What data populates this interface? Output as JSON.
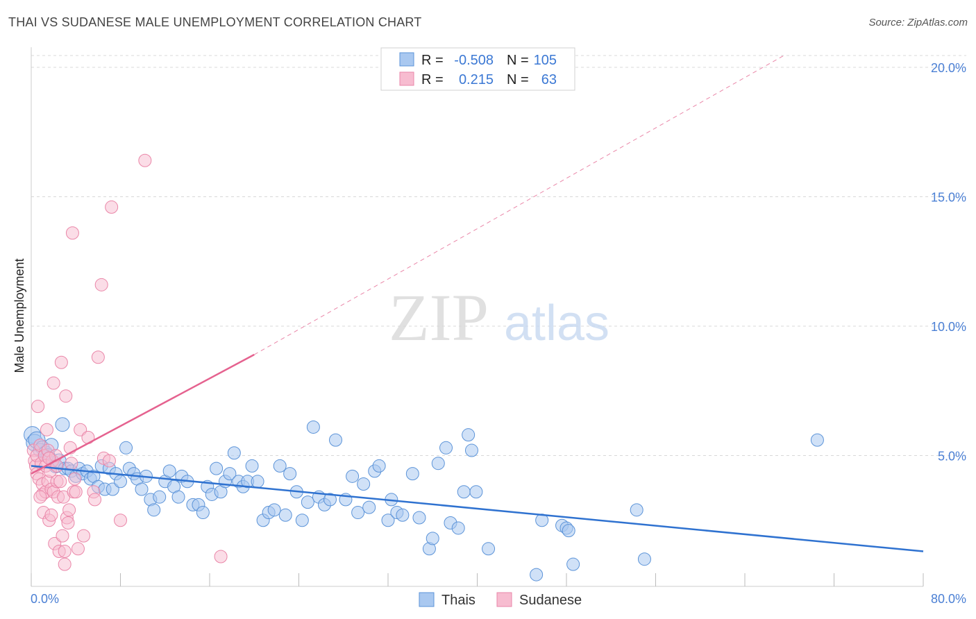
{
  "header": {
    "title": "THAI VS SUDANESE MALE UNEMPLOYMENT CORRELATION CHART",
    "source": "Source: ZipAtlas.com"
  },
  "watermark": {
    "zip": "ZIP",
    "atlas": "atlas"
  },
  "legend_box": {
    "rows": [
      {
        "r_label": "R =",
        "r_value": "-0.508",
        "n_label": "N =",
        "n_value": "105"
      },
      {
        "r_label": "R =",
        "r_value": "0.215",
        "n_label": "N =",
        "n_value": "63"
      }
    ]
  },
  "bottom_legend": [
    "Thais",
    "Sudanese"
  ],
  "colors": {
    "thais_fill": "#a9c8f0",
    "thais_stroke": "#5b93d8",
    "thais_line": "#2f72d0",
    "sudanese_fill": "#f7bcd0",
    "sudanese_stroke": "#ea86a8",
    "sudanese_line": "#e5628f",
    "tick_text": "#4a7fd4",
    "grid": "#d8d8d8"
  },
  "chart_data": {
    "type": "scatter",
    "title": "THAI VS SUDANESE MALE UNEMPLOYMENT CORRELATION CHART",
    "xlabel": "",
    "ylabel": "Male Unemployment",
    "xlim": [
      0,
      80
    ],
    "ylim": [
      0,
      20
    ],
    "x_tick_labels": [
      "0.0%",
      "80.0%"
    ],
    "y_ticks": [
      5,
      10,
      15,
      20
    ],
    "y_tick_labels": [
      "5.0%",
      "10.0%",
      "15.0%",
      "20.0%"
    ],
    "grid": true,
    "legend_position": "top-center",
    "series": [
      {
        "name": "Thais",
        "r": -0.508,
        "n": 105,
        "trend": {
          "x": [
            0,
            80
          ],
          "y": [
            4.6,
            1.3
          ]
        },
        "points": [
          [
            0.1,
            5.8
          ],
          [
            0.3,
            5.5
          ],
          [
            0.5,
            5.6
          ],
          [
            0.8,
            5.2
          ],
          [
            1.0,
            5.3
          ],
          [
            1.3,
            5.1
          ],
          [
            1.5,
            5.0
          ],
          [
            1.8,
            5.4
          ],
          [
            2.0,
            4.7
          ],
          [
            2.2,
            4.6
          ],
          [
            2.5,
            4.8
          ],
          [
            2.8,
            6.2
          ],
          [
            3.0,
            4.5
          ],
          [
            3.3,
            4.5
          ],
          [
            3.6,
            4.4
          ],
          [
            4.0,
            4.2
          ],
          [
            4.3,
            4.5
          ],
          [
            4.6,
            4.3
          ],
          [
            5.0,
            4.4
          ],
          [
            5.3,
            4.1
          ],
          [
            5.6,
            4.2
          ],
          [
            6.0,
            3.8
          ],
          [
            6.3,
            4.6
          ],
          [
            6.6,
            3.7
          ],
          [
            7.0,
            4.5
          ],
          [
            7.3,
            3.7
          ],
          [
            7.6,
            4.3
          ],
          [
            8.0,
            4.0
          ],
          [
            8.5,
            5.3
          ],
          [
            8.8,
            4.5
          ],
          [
            9.2,
            4.3
          ],
          [
            9.5,
            4.1
          ],
          [
            9.9,
            3.7
          ],
          [
            10.3,
            4.2
          ],
          [
            10.7,
            3.3
          ],
          [
            11.0,
            2.9
          ],
          [
            11.5,
            3.4
          ],
          [
            12.0,
            4.0
          ],
          [
            12.4,
            4.4
          ],
          [
            12.8,
            3.8
          ],
          [
            13.2,
            3.4
          ],
          [
            13.5,
            4.2
          ],
          [
            14.0,
            4.0
          ],
          [
            14.5,
            3.1
          ],
          [
            15.0,
            3.1
          ],
          [
            15.4,
            2.8
          ],
          [
            15.8,
            3.8
          ],
          [
            16.2,
            3.5
          ],
          [
            16.6,
            4.5
          ],
          [
            17.0,
            3.6
          ],
          [
            17.4,
            4.0
          ],
          [
            17.8,
            4.3
          ],
          [
            18.2,
            5.1
          ],
          [
            18.6,
            4.0
          ],
          [
            19.0,
            3.8
          ],
          [
            19.4,
            4.0
          ],
          [
            19.8,
            4.6
          ],
          [
            20.3,
            4.0
          ],
          [
            20.8,
            2.5
          ],
          [
            21.3,
            2.8
          ],
          [
            21.8,
            2.9
          ],
          [
            22.3,
            4.6
          ],
          [
            22.8,
            2.7
          ],
          [
            23.2,
            4.3
          ],
          [
            23.8,
            3.6
          ],
          [
            24.3,
            2.5
          ],
          [
            24.8,
            3.2
          ],
          [
            25.3,
            6.1
          ],
          [
            25.8,
            3.4
          ],
          [
            26.3,
            3.1
          ],
          [
            26.8,
            3.3
          ],
          [
            27.3,
            5.6
          ],
          [
            28.2,
            3.3
          ],
          [
            28.8,
            4.2
          ],
          [
            29.3,
            2.8
          ],
          [
            29.8,
            3.9
          ],
          [
            30.3,
            3.0
          ],
          [
            30.8,
            4.4
          ],
          [
            31.2,
            4.6
          ],
          [
            32.0,
            2.5
          ],
          [
            32.3,
            3.3
          ],
          [
            32.8,
            2.8
          ],
          [
            33.3,
            2.7
          ],
          [
            34.2,
            4.3
          ],
          [
            34.8,
            2.6
          ],
          [
            35.7,
            1.4
          ],
          [
            36.0,
            1.8
          ],
          [
            36.5,
            4.7
          ],
          [
            37.2,
            5.3
          ],
          [
            37.6,
            2.4
          ],
          [
            38.3,
            2.2
          ],
          [
            38.8,
            3.6
          ],
          [
            39.2,
            5.8
          ],
          [
            39.5,
            5.2
          ],
          [
            39.9,
            3.6
          ],
          [
            41.0,
            1.4
          ],
          [
            45.3,
            0.4
          ],
          [
            45.8,
            2.5
          ],
          [
            47.6,
            2.3
          ],
          [
            48.0,
            2.2
          ],
          [
            48.2,
            2.1
          ],
          [
            48.6,
            0.8
          ],
          [
            54.3,
            2.9
          ],
          [
            55.0,
            1.0
          ],
          [
            70.5,
            5.6
          ]
        ]
      },
      {
        "name": "Sudanese",
        "r": 0.215,
        "n": 63,
        "trend": {
          "x": [
            0,
            20
          ],
          "y": [
            4.3,
            8.9
          ],
          "dashed_extension": {
            "x": [
              20,
              67.5
            ],
            "y": [
              8.9,
              20
            ]
          }
        },
        "points": [
          [
            0.2,
            5.2
          ],
          [
            0.3,
            4.8
          ],
          [
            0.4,
            4.6
          ],
          [
            0.5,
            5.0
          ],
          [
            0.5,
            4.3
          ],
          [
            0.6,
            6.9
          ],
          [
            0.7,
            4.1
          ],
          [
            0.8,
            5.4
          ],
          [
            0.9,
            4.7
          ],
          [
            1.0,
            3.9
          ],
          [
            1.0,
            3.5
          ],
          [
            1.1,
            2.8
          ],
          [
            1.2,
            5.0
          ],
          [
            1.3,
            4.6
          ],
          [
            1.3,
            3.6
          ],
          [
            1.4,
            6.0
          ],
          [
            1.5,
            5.2
          ],
          [
            1.5,
            4.0
          ],
          [
            1.6,
            2.5
          ],
          [
            1.7,
            4.4
          ],
          [
            1.8,
            3.7
          ],
          [
            1.8,
            2.7
          ],
          [
            1.9,
            4.8
          ],
          [
            2.0,
            7.8
          ],
          [
            2.0,
            3.6
          ],
          [
            2.1,
            1.6
          ],
          [
            2.2,
            5.0
          ],
          [
            2.3,
            4.0
          ],
          [
            2.4,
            3.4
          ],
          [
            2.5,
            1.3
          ],
          [
            2.6,
            4.0
          ],
          [
            2.7,
            8.6
          ],
          [
            2.8,
            1.9
          ],
          [
            2.9,
            3.4
          ],
          [
            3.0,
            1.3
          ],
          [
            3.0,
            0.8
          ],
          [
            3.1,
            7.3
          ],
          [
            3.2,
            2.6
          ],
          [
            3.3,
            2.4
          ],
          [
            3.4,
            2.9
          ],
          [
            3.5,
            5.3
          ],
          [
            3.6,
            4.7
          ],
          [
            3.7,
            13.6
          ],
          [
            3.8,
            3.6
          ],
          [
            3.9,
            4.1
          ],
          [
            4.0,
            3.6
          ],
          [
            4.2,
            1.4
          ],
          [
            4.4,
            6.0
          ],
          [
            4.7,
            1.9
          ],
          [
            5.1,
            5.7
          ],
          [
            5.6,
            3.6
          ],
          [
            5.7,
            3.3
          ],
          [
            6.0,
            8.8
          ],
          [
            6.3,
            11.6
          ],
          [
            6.5,
            4.9
          ],
          [
            7.0,
            4.8
          ],
          [
            7.2,
            14.6
          ],
          [
            8.0,
            2.5
          ],
          [
            10.2,
            16.4
          ],
          [
            17.0,
            1.1
          ],
          [
            0.8,
            3.4
          ],
          [
            1.6,
            4.9
          ],
          [
            2.3,
            4.6
          ]
        ]
      }
    ]
  }
}
